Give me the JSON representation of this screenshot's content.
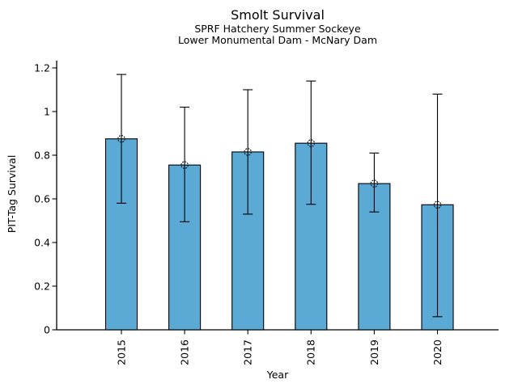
{
  "chart": {
    "title": "Smolt Survival",
    "subtitle1": "SPRF Hatchery Summer Sockeye",
    "subtitle2": "Lower Monumental Dam - McNary Dam"
  },
  "chart_data": {
    "type": "bar",
    "title": "Smolt Survival",
    "subtitle1": "SPRF Hatchery Summer Sockeye",
    "subtitle2": "Lower Monumental Dam - McNary Dam",
    "xlabel": "Year",
    "ylabel": "PIT-Tag Survival",
    "categories": [
      "2015",
      "2016",
      "2017",
      "2018",
      "2019",
      "2020"
    ],
    "values": [
      0.875,
      0.755,
      0.815,
      0.855,
      0.67,
      0.573
    ],
    "error_low": [
      0.58,
      0.495,
      0.53,
      0.575,
      0.54,
      0.06
    ],
    "error_high": [
      1.17,
      1.02,
      1.1,
      1.14,
      0.81,
      1.08
    ],
    "yticks": [
      0,
      0.2,
      0.4,
      0.6,
      0.8,
      1,
      1.2
    ],
    "ytick_labels": [
      "0",
      "0.2",
      "0.4",
      "0.6",
      "0.8",
      "1",
      "1.2"
    ],
    "ylim": [
      0,
      1.233
    ],
    "grid": false,
    "legend": null,
    "bar_color": "#5BA9D5",
    "bar_edge_color": "#000000",
    "error_color": "#000000",
    "marker": "open-dashed-circle"
  }
}
